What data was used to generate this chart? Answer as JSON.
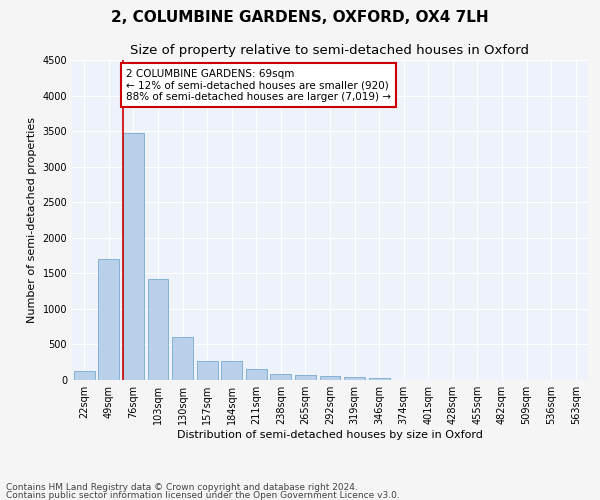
{
  "title": "2, COLUMBINE GARDENS, OXFORD, OX4 7LH",
  "subtitle": "Size of property relative to semi-detached houses in Oxford",
  "xlabel": "Distribution of semi-detached houses by size in Oxford",
  "ylabel": "Number of semi-detached properties",
  "categories": [
    "22sqm",
    "49sqm",
    "76sqm",
    "103sqm",
    "130sqm",
    "157sqm",
    "184sqm",
    "211sqm",
    "238sqm",
    "265sqm",
    "292sqm",
    "319sqm",
    "346sqm",
    "374sqm",
    "401sqm",
    "428sqm",
    "455sqm",
    "482sqm",
    "509sqm",
    "536sqm",
    "563sqm"
  ],
  "values": [
    130,
    1700,
    3480,
    1420,
    610,
    265,
    265,
    155,
    85,
    65,
    50,
    45,
    30,
    0,
    0,
    0,
    0,
    0,
    0,
    0,
    0
  ],
  "bar_color": "#b8d0ea",
  "bar_edge_color": "#7aaace",
  "vline_bar_index": 2,
  "annotation_text": "2 COLUMBINE GARDENS: 69sqm\n← 12% of semi-detached houses are smaller (920)\n88% of semi-detached houses are larger (7,019) →",
  "annotation_box_color": "#ffffff",
  "annotation_box_edge": "#cc0000",
  "ylim": [
    0,
    4500
  ],
  "yticks": [
    0,
    500,
    1000,
    1500,
    2000,
    2500,
    3000,
    3500,
    4000,
    4500
  ],
  "footer1": "Contains HM Land Registry data © Crown copyright and database right 2024.",
  "footer2": "Contains public sector information licensed under the Open Government Licence v3.0.",
  "bg_color": "#eef2fb",
  "fig_bg_color": "#f5f5f5",
  "grid_color": "#ffffff",
  "title_fontsize": 11,
  "subtitle_fontsize": 9.5,
  "label_fontsize": 8,
  "tick_fontsize": 7,
  "annotation_fontsize": 7.5,
  "footer_fontsize": 6.5,
  "vline_color": "#cc0000"
}
